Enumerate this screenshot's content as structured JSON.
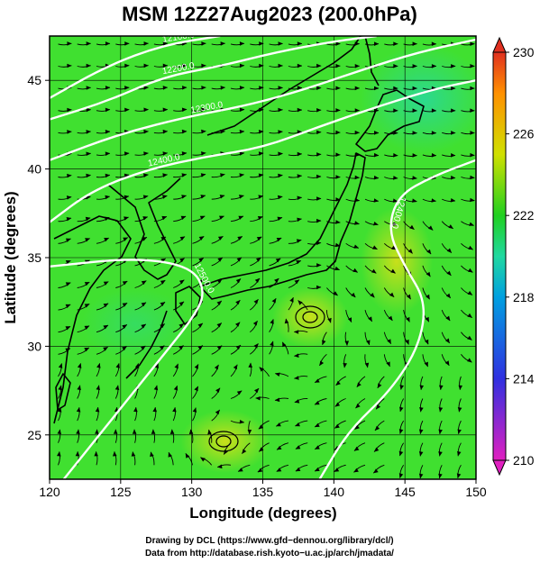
{
  "chart_data": {
    "type": "heatmap",
    "title": "MSM 12Z27Aug2023 (200.0hPa)",
    "xlabel": "Longitude (degrees)",
    "ylabel": "Latitude  (degrees)",
    "xlim": [
      120,
      150
    ],
    "ylim": [
      22.5,
      47.5
    ],
    "x_ticks": [
      120,
      125,
      130,
      135,
      140,
      145,
      150
    ],
    "y_ticks": [
      25,
      30,
      35,
      40,
      45
    ],
    "grid": true,
    "colorbar": {
      "orientation": "vertical",
      "placement": "right",
      "min": 210,
      "max": 230,
      "ticks": [
        210,
        214,
        218,
        222,
        226,
        230
      ],
      "colors": [
        "#e020c0",
        "#3030e0",
        "#00a0e0",
        "#20d8a0",
        "#20d020",
        "#d0e000",
        "#ff9000",
        "#e03020"
      ]
    },
    "field_colors": {
      "main": "#40e030",
      "warm": "#c8e020",
      "cool": "#30d880"
    },
    "contours": [
      {
        "label": "12100.0",
        "points": [
          [
            120.0,
            44.0
          ],
          [
            124.0,
            45.8
          ],
          [
            128.0,
            47.0
          ],
          [
            132.0,
            47.5
          ]
        ]
      },
      {
        "label": "12200.0",
        "points": [
          [
            120.0,
            42.8
          ],
          [
            124.0,
            43.8
          ],
          [
            128.0,
            45.2
          ],
          [
            132.0,
            45.8
          ],
          [
            136.0,
            46.6
          ],
          [
            140.0,
            47.2
          ],
          [
            143.0,
            47.5
          ]
        ]
      },
      {
        "label": "12300.0",
        "points": [
          [
            120.0,
            40.5
          ],
          [
            125.0,
            42.0
          ],
          [
            130.0,
            43.0
          ],
          [
            134.0,
            43.6
          ],
          [
            138.0,
            44.5
          ],
          [
            142.0,
            45.6
          ],
          [
            146.0,
            46.6
          ],
          [
            150.0,
            47.3
          ]
        ]
      },
      {
        "label": "12400.0",
        "points": [
          [
            120.0,
            37.0
          ],
          [
            123.0,
            38.8
          ],
          [
            127.0,
            40.0
          ],
          [
            131.0,
            40.7
          ],
          [
            135.0,
            41.2
          ],
          [
            139.0,
            42.4
          ],
          [
            143.0,
            43.5
          ],
          [
            147.0,
            44.5
          ],
          [
            150.0,
            45.0
          ]
        ]
      },
      {
        "label": "12400.0",
        "points": [
          [
            150.0,
            40.5
          ],
          [
            147.0,
            39.6
          ],
          [
            144.5,
            38.5
          ],
          [
            143.8,
            36.5
          ],
          [
            145.0,
            34.5
          ],
          [
            146.5,
            32.5
          ],
          [
            146.0,
            30.0
          ],
          [
            144.0,
            27.5
          ],
          [
            141.0,
            25.2
          ],
          [
            139.0,
            22.5
          ]
        ]
      },
      {
        "label": "12500.0",
        "points": [
          [
            120.0,
            34.5
          ],
          [
            126.0,
            35.0
          ],
          [
            130.0,
            34.5
          ],
          [
            131.0,
            33.0
          ],
          [
            130.0,
            31.5
          ],
          [
            128.0,
            29.5
          ],
          [
            126.0,
            27.5
          ],
          [
            124.0,
            25.5
          ],
          [
            122.0,
            23.5
          ],
          [
            121.0,
            22.5
          ]
        ]
      }
    ],
    "streamlines": "wind arrows at 200.0hPa"
  },
  "credits": {
    "line1": "Drawing by DCL (https://www.gfd−dennou.org/library/dcl/)",
    "line2": "Data from http://database.rish.kyoto−u.ac.jp/arch/jmadata/"
  }
}
